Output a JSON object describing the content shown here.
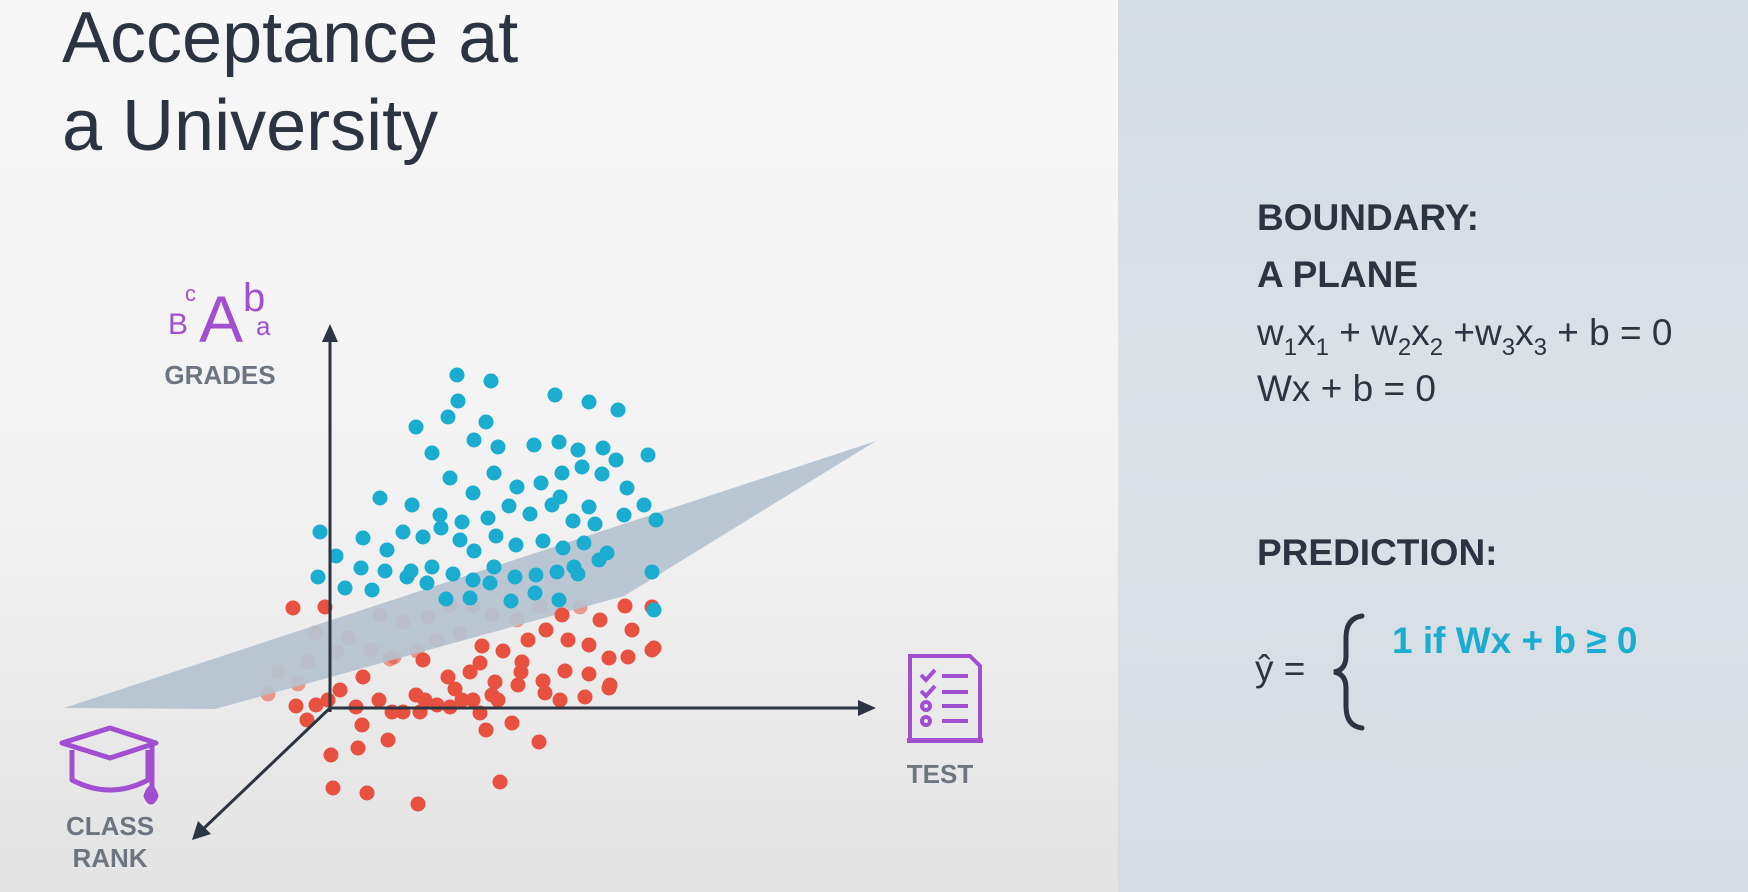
{
  "title": "Acceptance at\na University",
  "axes": {
    "grades_label": "GRADES",
    "test_label": "TEST",
    "class_rank_line1": "CLASS",
    "class_rank_line2": "RANK",
    "grades_icon_letters": [
      "B",
      "c",
      "A",
      "b",
      "a"
    ]
  },
  "boundary": {
    "heading_line1": "BOUNDARY:",
    "heading_line2": "A PLANE",
    "formula_terms": [
      {
        "w": "w",
        "wsub": "1",
        "x": "x",
        "xsub": "1",
        "sep": " + "
      },
      {
        "w": "w",
        "wsub": "2",
        "x": "x",
        "xsub": "2",
        "sep": " +"
      },
      {
        "w": "w",
        "wsub": "3",
        "x": "x",
        "xsub": "3",
        "sep": " + b = 0"
      }
    ],
    "vector_formula": "Wx + b = 0"
  },
  "prediction": {
    "heading": "PREDICTION:",
    "lhs": "ŷ =",
    "case1": "1 if Wx + b ≥ 0"
  },
  "colors": {
    "accepted": "#1badd0",
    "rejected": "#e8503f",
    "plane": "#b4c2cf",
    "icon": "#a14fd0",
    "axis": "#2b3440"
  },
  "icons": [
    "grades-letters-icon",
    "graduation-cap-icon",
    "test-sheet-icon"
  ]
}
